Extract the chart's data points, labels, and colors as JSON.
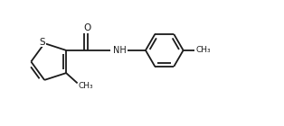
{
  "background_color": "#ffffff",
  "line_color": "#1a1a1a",
  "line_width": 1.3,
  "font_size": 7.0,
  "fig_width": 3.14,
  "fig_height": 1.4,
  "dpi": 100,
  "xlim": [
    0,
    10.5
  ],
  "ylim": [
    0,
    4.4
  ]
}
